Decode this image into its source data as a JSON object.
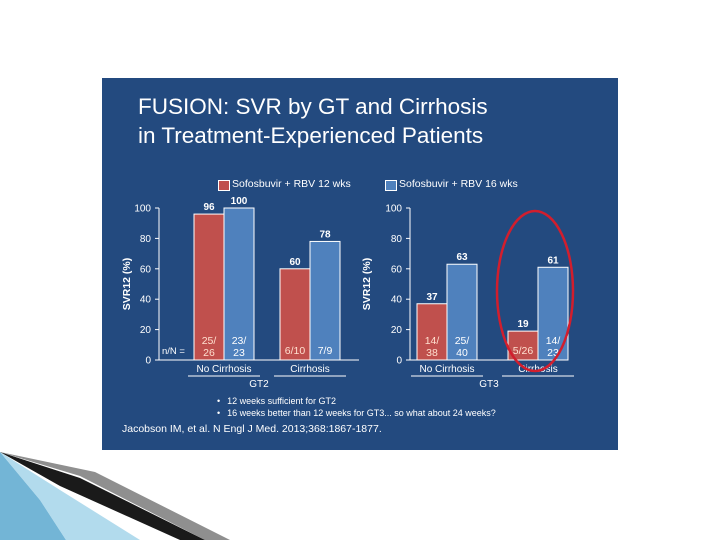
{
  "slide": {
    "title_line1": "FUSION: SVR by GT and Cirrhosis",
    "title_line2": "in Treatment-Experienced Patients",
    "bullets": [
      "12 weeks sufficient for GT2",
      "16 weeks better than 12 weeks for GT3... so what about 24 weeks?"
    ],
    "citation": "Jacobson IM,  et al.  N Engl J Med.  2013;368:1867-1877.",
    "colors": {
      "background": "#234a7f",
      "red_series": "#c0504d",
      "blue_series": "#4f81bd",
      "highlight_circle": "#d21e2d"
    },
    "highlight_icon": "red-ellipse-highlight-icon"
  },
  "chart_data": {
    "type": "bar",
    "ylabel": "SVR12 (%)",
    "ylim": [
      0,
      100
    ],
    "yticks": [
      0,
      20,
      40,
      60,
      80,
      100
    ],
    "grid": false,
    "legend": {
      "placement": "top",
      "entries": [
        {
          "name": "Sofosbuvir + RBV 12 wks",
          "color": "#c0504d"
        },
        {
          "name": "Sofosbuvir + RBV 16 wks",
          "color": "#4f81bd"
        }
      ]
    },
    "n_label": "n/N =",
    "panels": [
      {
        "group": "GT2",
        "categories": [
          {
            "name": "No Cirrhosis",
            "values": [
              96,
              100
            ],
            "labels": [
              "96",
              "100"
            ],
            "nn": [
              "25/ 26",
              "23/ 23"
            ]
          },
          {
            "name": "Cirrhosis",
            "values": [
              60,
              78
            ],
            "labels": [
              "60",
              "78"
            ],
            "nn": [
              "6/10",
              "7/9"
            ]
          }
        ]
      },
      {
        "group": "GT3",
        "categories": [
          {
            "name": "No Cirrhosis",
            "values": [
              37,
              63
            ],
            "labels": [
              "37",
              "63"
            ],
            "nn": [
              "14/ 38",
              "25/ 40"
            ]
          },
          {
            "name": "Cirrhosis",
            "values": [
              19,
              61
            ],
            "labels": [
              "19",
              "61"
            ],
            "nn": [
              "5/26",
              "14/ 23"
            ]
          }
        ]
      }
    ]
  }
}
